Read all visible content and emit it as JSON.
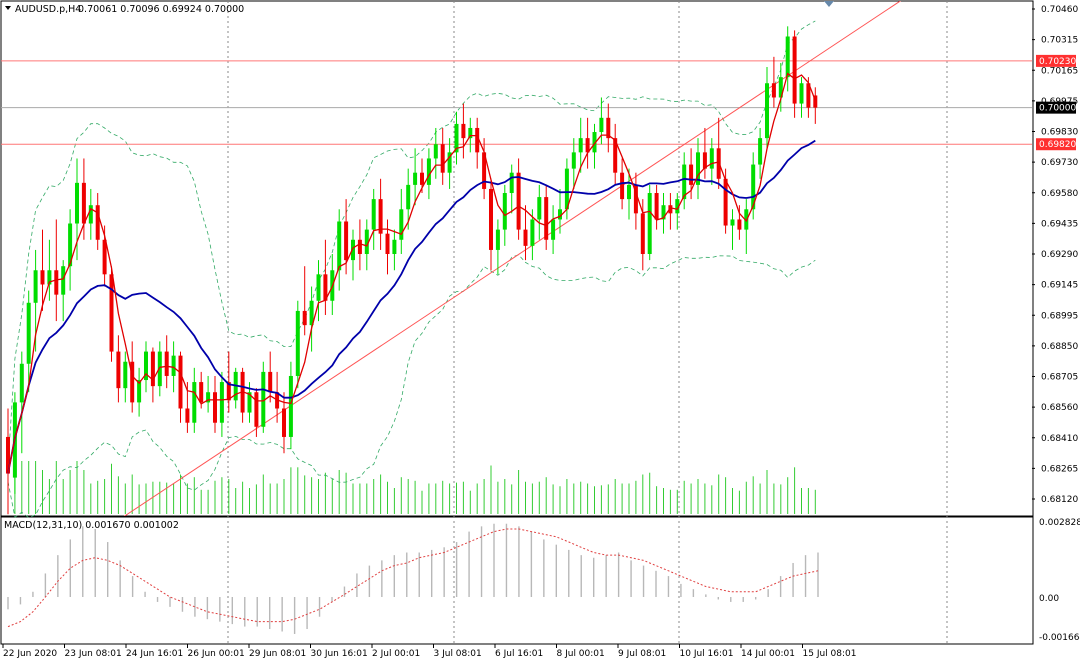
{
  "header": {
    "symbol": "AUDUSD.p,H4",
    "ohlc": "0.70061 0.70096 0.69924 0.70000"
  },
  "indicator": {
    "label": "MACD(12,31,10) 0.001670 0.001002",
    "ticks": [
      "0.002828",
      "0.00",
      "-0.001664"
    ]
  },
  "colors": {
    "bull": "#00dd00",
    "bear": "#ee0000",
    "fast_ma": "#e00000",
    "slow_ma": "#0000aa",
    "bands": "#33aa66",
    "hline": "#ff7777",
    "trendline": "#ff5555",
    "macd_hist": "#b8b8b8",
    "macd_signal": "#e04040",
    "volume": "#33cc33"
  },
  "price_axis": {
    "ticks": [
      "0.70460",
      "0.70315",
      "0.70165",
      "0.69975",
      "0.69830",
      "0.69730",
      "0.69580",
      "0.69435",
      "0.69290",
      "0.69145",
      "0.68995",
      "0.68850",
      "0.68705",
      "0.68560",
      "0.68410",
      "0.68265",
      "0.68120"
    ],
    "tags": [
      {
        "text": "0.70230",
        "value": 0.7023,
        "bg": "#ff3030",
        "fg": "#ffffff"
      },
      {
        "text": "0.70000",
        "value": 0.7,
        "bg": "#000000",
        "fg": "#ffffff"
      },
      {
        "text": "0.69820",
        "value": 0.6982,
        "bg": "#ff3030",
        "fg": "#ffffff"
      }
    ]
  },
  "time_axis": [
    "22 Jun 2020",
    "23 Jun 08:01",
    "24 Jun 16:01",
    "26 Jun 00:01",
    "29 Jun 08:01",
    "30 Jun 16:01",
    "2 Jul 00:01",
    "3 Jul 08:01",
    "6 Jul 16:01",
    "8 Jul 00:01",
    "9 Jul 08:01",
    "10 Jul 16:01",
    "14 Jul 00:01",
    "15 Jul 08:01"
  ],
  "chart_data": {
    "type": "candlestick",
    "price_min": 0.6806,
    "price_max": 0.705,
    "horizontal_lines": [
      0.7023,
      0.7,
      0.6982
    ],
    "trendline": [
      [
        0,
        0.6761
      ],
      [
        130,
        0.7054
      ]
    ],
    "candles_ohlc": [
      [
        0.6838,
        0.6852,
        0.68,
        0.682
      ],
      [
        0.6818,
        0.686,
        0.681,
        0.6855
      ],
      [
        0.6855,
        0.688,
        0.683,
        0.6874
      ],
      [
        0.6874,
        0.691,
        0.686,
        0.6904
      ],
      [
        0.6904,
        0.693,
        0.688,
        0.692
      ],
      [
        0.692,
        0.694,
        0.69,
        0.6913
      ],
      [
        0.6913,
        0.6935,
        0.6905,
        0.692
      ],
      [
        0.692,
        0.6945,
        0.6895,
        0.6908
      ],
      [
        0.6908,
        0.6925,
        0.6895,
        0.6922
      ],
      [
        0.6922,
        0.695,
        0.691,
        0.6943
      ],
      [
        0.6943,
        0.6975,
        0.6925,
        0.6963
      ],
      [
        0.6963,
        0.6975,
        0.6935,
        0.6943
      ],
      [
        0.6943,
        0.696,
        0.6935,
        0.6952
      ],
      [
        0.6952,
        0.6958,
        0.693,
        0.6935
      ],
      [
        0.6935,
        0.6942,
        0.6912,
        0.6918
      ],
      [
        0.6918,
        0.6922,
        0.6875,
        0.688
      ],
      [
        0.688,
        0.6888,
        0.6855,
        0.6862
      ],
      [
        0.6862,
        0.688,
        0.6855,
        0.6875
      ],
      [
        0.6875,
        0.6885,
        0.685,
        0.6855
      ],
      [
        0.6855,
        0.6872,
        0.6848,
        0.6866
      ],
      [
        0.6866,
        0.6885,
        0.686,
        0.688
      ],
      [
        0.688,
        0.6882,
        0.6855,
        0.6863
      ],
      [
        0.6863,
        0.6885,
        0.6858,
        0.688
      ],
      [
        0.688,
        0.6888,
        0.6862,
        0.6868
      ],
      [
        0.6868,
        0.6885,
        0.686,
        0.6878
      ],
      [
        0.6878,
        0.688,
        0.6845,
        0.6852
      ],
      [
        0.6852,
        0.6865,
        0.684,
        0.6845
      ],
      [
        0.6845,
        0.6872,
        0.684,
        0.6865
      ],
      [
        0.6865,
        0.687,
        0.6852,
        0.6855
      ],
      [
        0.6855,
        0.6868,
        0.685,
        0.686
      ],
      [
        0.686,
        0.6868,
        0.684,
        0.6845
      ],
      [
        0.6845,
        0.687,
        0.6838,
        0.6865
      ],
      [
        0.6865,
        0.688,
        0.685,
        0.6856
      ],
      [
        0.6856,
        0.6872,
        0.6852,
        0.687
      ],
      [
        0.687,
        0.6872,
        0.6845,
        0.685
      ],
      [
        0.685,
        0.6865,
        0.6845,
        0.686
      ],
      [
        0.686,
        0.6862,
        0.6838,
        0.6843
      ],
      [
        0.6843,
        0.6875,
        0.684,
        0.687
      ],
      [
        0.687,
        0.688,
        0.6855,
        0.686
      ],
      [
        0.686,
        0.687,
        0.6845,
        0.6852
      ],
      [
        0.6852,
        0.686,
        0.683,
        0.6838
      ],
      [
        0.6838,
        0.6875,
        0.6832,
        0.6868
      ],
      [
        0.6868,
        0.6905,
        0.6862,
        0.69
      ],
      [
        0.69,
        0.6922,
        0.6888,
        0.6893
      ],
      [
        0.6893,
        0.6912,
        0.688,
        0.6905
      ],
      [
        0.6905,
        0.6925,
        0.6895,
        0.6918
      ],
      [
        0.6918,
        0.6935,
        0.6898,
        0.6905
      ],
      [
        0.6905,
        0.6928,
        0.6898,
        0.692
      ],
      [
        0.692,
        0.695,
        0.691,
        0.6944
      ],
      [
        0.6944,
        0.6955,
        0.6918,
        0.6925
      ],
      [
        0.6925,
        0.694,
        0.6915,
        0.6935
      ],
      [
        0.6935,
        0.6945,
        0.692,
        0.6928
      ],
      [
        0.6928,
        0.6945,
        0.692,
        0.694
      ],
      [
        0.694,
        0.696,
        0.693,
        0.6955
      ],
      [
        0.6955,
        0.6965,
        0.693,
        0.6938
      ],
      [
        0.6938,
        0.6945,
        0.6918,
        0.6928
      ],
      [
        0.6928,
        0.694,
        0.692,
        0.6935
      ],
      [
        0.6935,
        0.696,
        0.6928,
        0.695
      ],
      [
        0.695,
        0.697,
        0.694,
        0.6962
      ],
      [
        0.6962,
        0.698,
        0.6952,
        0.6968
      ],
      [
        0.6968,
        0.6975,
        0.6958,
        0.6962
      ],
      [
        0.6962,
        0.698,
        0.6955,
        0.6975
      ],
      [
        0.6975,
        0.699,
        0.6965,
        0.6982
      ],
      [
        0.6982,
        0.699,
        0.6962,
        0.6968
      ],
      [
        0.6968,
        0.6985,
        0.696,
        0.6978
      ],
      [
        0.6978,
        0.6998,
        0.6972,
        0.6992
      ],
      [
        0.6992,
        0.7002,
        0.6975,
        0.6985
      ],
      [
        0.6985,
        0.6995,
        0.6978,
        0.699
      ],
      [
        0.699,
        0.6995,
        0.697,
        0.6978
      ],
      [
        0.6978,
        0.6985,
        0.6955,
        0.696
      ],
      [
        0.696,
        0.6965,
        0.692,
        0.693
      ],
      [
        0.693,
        0.6945,
        0.6918,
        0.694
      ],
      [
        0.694,
        0.6962,
        0.6932,
        0.6958
      ],
      [
        0.6958,
        0.6972,
        0.6948,
        0.6968
      ],
      [
        0.6968,
        0.6975,
        0.6935,
        0.694
      ],
      [
        0.694,
        0.6952,
        0.6925,
        0.6932
      ],
      [
        0.6932,
        0.695,
        0.6925,
        0.6945
      ],
      [
        0.6945,
        0.6962,
        0.6935,
        0.6956
      ],
      [
        0.6956,
        0.6962,
        0.693,
        0.6935
      ],
      [
        0.6935,
        0.6952,
        0.6928,
        0.6945
      ],
      [
        0.6945,
        0.696,
        0.6938,
        0.695
      ],
      [
        0.695,
        0.6975,
        0.6945,
        0.697
      ],
      [
        0.697,
        0.6985,
        0.696,
        0.6978
      ],
      [
        0.6978,
        0.6995,
        0.6968,
        0.6985
      ],
      [
        0.6985,
        0.6995,
        0.697,
        0.6978
      ],
      [
        0.6978,
        0.6992,
        0.697,
        0.6988
      ],
      [
        0.6988,
        0.7005,
        0.6982,
        0.6995
      ],
      [
        0.6995,
        0.7002,
        0.6978,
        0.6985
      ],
      [
        0.6985,
        0.6992,
        0.6962,
        0.6968
      ],
      [
        0.6968,
        0.6975,
        0.695,
        0.6955
      ],
      [
        0.6955,
        0.697,
        0.6945,
        0.6962
      ],
      [
        0.6962,
        0.6968,
        0.694,
        0.6948
      ],
      [
        0.6948,
        0.6955,
        0.692,
        0.6928
      ],
      [
        0.6928,
        0.6962,
        0.6925,
        0.6958
      ],
      [
        0.6958,
        0.6962,
        0.694,
        0.6945
      ],
      [
        0.6945,
        0.6958,
        0.6938,
        0.6952
      ],
      [
        0.6952,
        0.6958,
        0.694,
        0.6948
      ],
      [
        0.6948,
        0.6958,
        0.694,
        0.6955
      ],
      [
        0.6955,
        0.6978,
        0.695,
        0.6972
      ],
      [
        0.6972,
        0.698,
        0.6955,
        0.6962
      ],
      [
        0.6962,
        0.6985,
        0.6955,
        0.6978
      ],
      [
        0.6978,
        0.699,
        0.6965,
        0.697
      ],
      [
        0.697,
        0.6985,
        0.6962,
        0.698
      ],
      [
        0.698,
        0.6995,
        0.696,
        0.6965
      ],
      [
        0.6965,
        0.697,
        0.6938,
        0.6942
      ],
      [
        0.6942,
        0.695,
        0.693,
        0.6945
      ],
      [
        0.6945,
        0.6952,
        0.6935,
        0.694
      ],
      [
        0.694,
        0.6955,
        0.6928,
        0.695
      ],
      [
        0.695,
        0.6978,
        0.6945,
        0.6972
      ],
      [
        0.6972,
        0.699,
        0.6965,
        0.6985
      ],
      [
        0.6985,
        0.702,
        0.698,
        0.7012
      ],
      [
        0.7012,
        0.7025,
        0.7,
        0.7005
      ],
      [
        0.7005,
        0.7022,
        0.6998,
        0.7015
      ],
      [
        0.7015,
        0.704,
        0.7008,
        0.7035
      ],
      [
        0.7035,
        0.7038,
        0.6995,
        0.7002
      ],
      [
        0.7002,
        0.7015,
        0.6995,
        0.7012
      ],
      [
        0.7012,
        0.7015,
        0.6995,
        0.7
      ],
      [
        0.7006,
        0.701,
        0.6992,
        0.7
      ]
    ],
    "macd_hist": [
      -0.0005,
      -0.0003,
      0.0002,
      0.0009,
      0.0016,
      0.0022,
      0.0027,
      0.0026,
      0.0021,
      0.0014,
      0.0008,
      0.0002,
      -0.0002,
      -0.0004,
      -0.0006,
      -0.0008,
      -0.0009,
      -0.001,
      -0.0011,
      -0.0012,
      -0.0012,
      -0.0013,
      -0.0014,
      -0.0015,
      -0.0013,
      -0.0008,
      -0.0002,
      0.0004,
      0.0009,
      0.0012,
      0.0014,
      0.0016,
      0.0017,
      0.0017,
      0.0018,
      0.0019,
      0.0021,
      0.0025,
      0.0027,
      0.0028,
      0.0028,
      0.0027,
      0.0025,
      0.0022,
      0.002,
      0.0018,
      0.0016,
      0.0015,
      0.0016,
      0.0017,
      0.0014,
      0.0012,
      0.001,
      0.0008,
      0.0005,
      0.0003,
      0.0001,
      -0.0001,
      -0.0002,
      -0.0002,
      -0.0001,
      0.0003,
      0.0008,
      0.0013,
      0.0016,
      0.0017
    ],
    "macd_signal": [
      -0.0012,
      -0.001,
      -0.0006,
      0.0,
      0.0006,
      0.0011,
      0.0014,
      0.0015,
      0.0014,
      0.0012,
      0.0009,
      0.0006,
      0.0003,
      0.0,
      -0.0002,
      -0.0004,
      -0.0006,
      -0.0007,
      -0.0008,
      -0.0009,
      -0.001,
      -0.001,
      -0.001,
      -0.0009,
      -0.0007,
      -0.0005,
      -0.0002,
      0.0001,
      0.0004,
      0.0007,
      0.001,
      0.0012,
      0.0013,
      0.0015,
      0.0016,
      0.0017,
      0.0019,
      0.0021,
      0.0023,
      0.0025,
      0.0026,
      0.0026,
      0.0025,
      0.0024,
      0.0023,
      0.0021,
      0.0019,
      0.0017,
      0.0016,
      0.0016,
      0.0015,
      0.0014,
      0.0012,
      0.001,
      0.0008,
      0.0006,
      0.0004,
      0.0003,
      0.0002,
      0.0002,
      0.0002,
      0.0004,
      0.0006,
      0.0008,
      0.0009,
      0.001
    ]
  }
}
